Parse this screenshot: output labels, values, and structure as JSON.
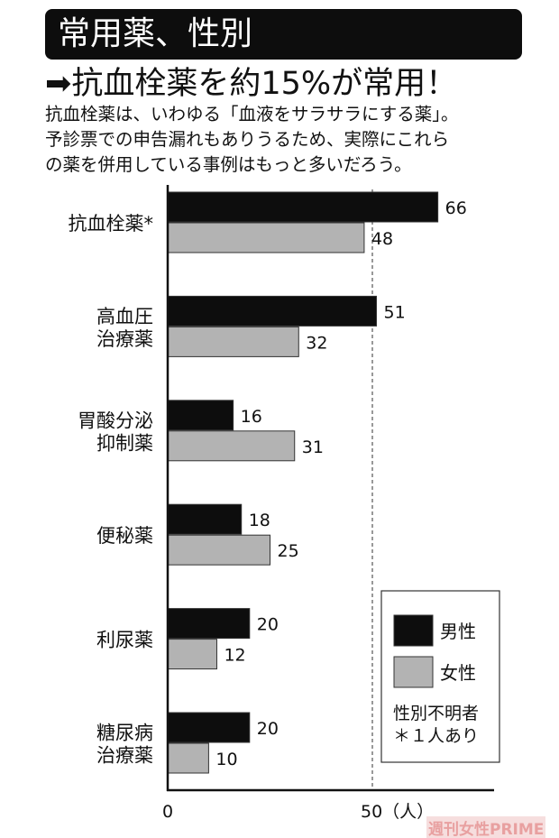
{
  "header": {
    "title": "常用薬、性別",
    "headline": "➡抗血栓薬を約15%が常用！",
    "description": [
      "抗血栓薬は、いわゆる「血液をサラサラにする薬」。",
      "予診票での申告漏れもありうるため、実際にこれら",
      "の薬を併用している事例はもっと多いだろう。"
    ]
  },
  "chart_data": {
    "type": "bar",
    "orientation": "horizontal",
    "categories": [
      [
        "抗血栓薬*"
      ],
      [
        "高血圧",
        "治療薬"
      ],
      [
        "胃酸分泌",
        "抑制薬"
      ],
      [
        "便秘薬"
      ],
      [
        "利尿薬"
      ],
      [
        "糖尿病",
        "治療薬"
      ]
    ],
    "series": [
      {
        "name": "男性",
        "color": "#0d0d0d",
        "values": [
          66,
          51,
          16,
          18,
          20,
          20
        ]
      },
      {
        "name": "女性",
        "color": "#b3b3b3",
        "values": [
          48,
          32,
          31,
          25,
          12,
          10
        ]
      }
    ],
    "xticks": [
      "0",
      "50（人）"
    ],
    "xtick_values": [
      0,
      50
    ],
    "reference_line": 50,
    "xlim": [
      0,
      80
    ],
    "legend": "bottom-right",
    "legend_note": [
      "性別不明者",
      "＊１人あり"
    ]
  },
  "watermark": "週刊女性PRIME"
}
